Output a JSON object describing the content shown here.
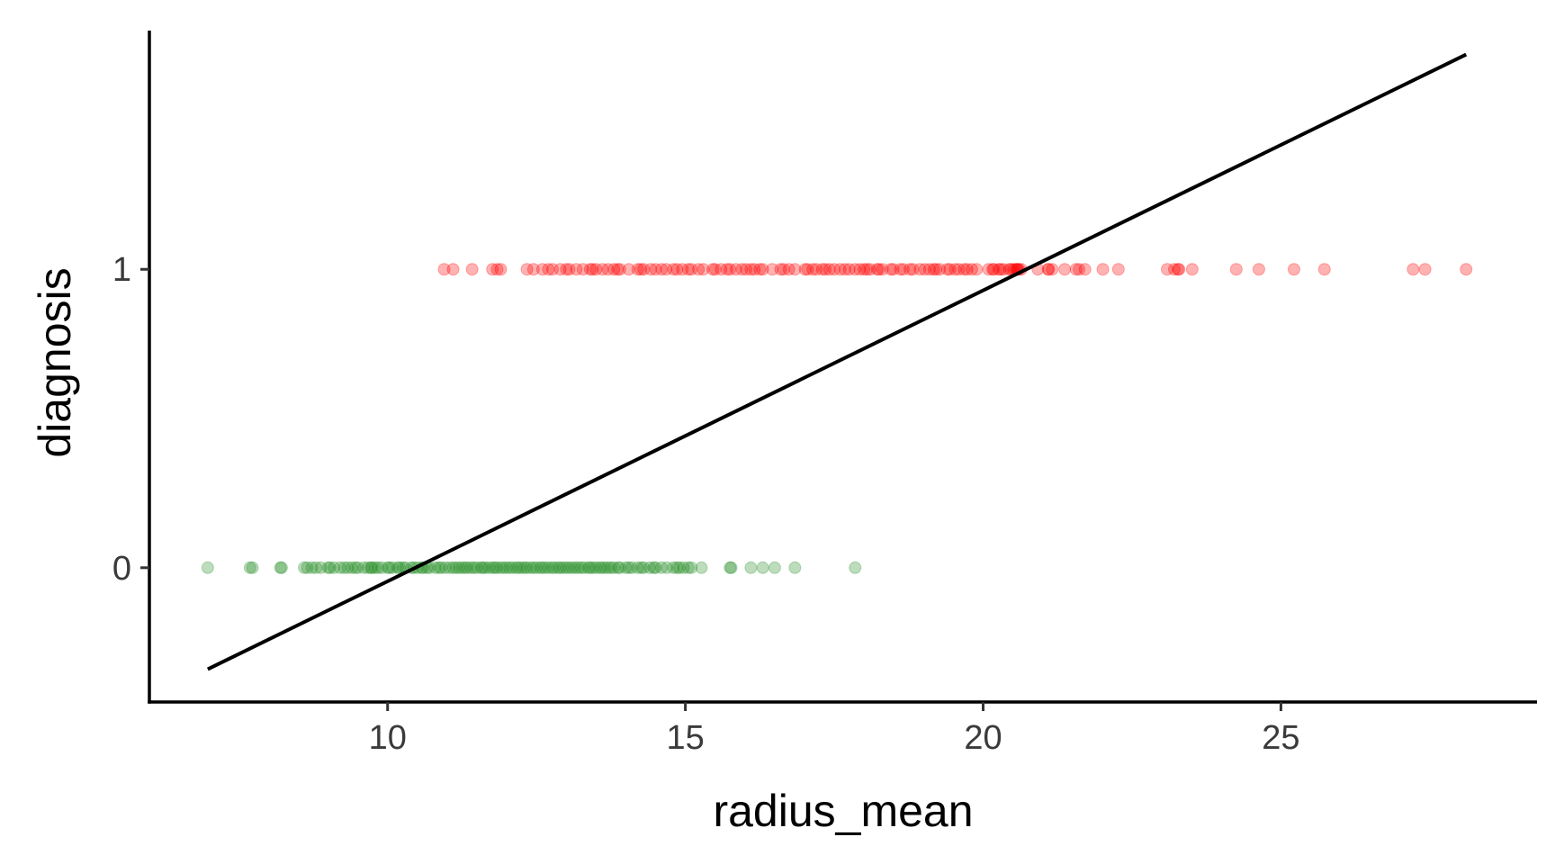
{
  "chart_data": {
    "type": "scatter",
    "title": "",
    "xlabel": "radius_mean",
    "ylabel": "diagnosis",
    "xlim": [
      6.0,
      29.3
    ],
    "ylim": [
      -0.45,
      1.8
    ],
    "x_ticks": [
      10,
      15,
      20,
      25
    ],
    "y_ticks": [
      0,
      1
    ],
    "grid": false,
    "legend": "none",
    "colors": {
      "diagnosis_0": "#228b22",
      "diagnosis_1": "#ff0000",
      "fit_line": "#000000"
    },
    "series": [
      {
        "y": 0,
        "point_alpha": 0.3,
        "x": [
          6.98,
          7.69,
          7.73,
          8.2,
          8.22,
          8.6,
          8.65,
          8.73,
          8.8,
          8.88,
          9.0,
          9.03,
          9.1,
          9.2,
          9.27,
          9.33,
          9.4,
          9.46,
          9.5,
          9.6,
          9.67,
          9.72,
          9.74,
          9.79,
          9.84,
          9.9,
          10.0,
          10.03,
          10.08,
          10.17,
          10.2,
          10.26,
          10.3,
          10.4,
          10.44,
          10.5,
          10.57,
          10.6,
          10.66,
          10.7,
          10.8,
          10.86,
          10.9,
          10.97,
          11.04,
          11.1,
          11.15,
          11.2,
          11.25,
          11.3,
          11.34,
          11.4,
          11.45,
          11.5,
          11.57,
          11.6,
          11.64,
          11.7,
          11.76,
          11.8,
          11.84,
          11.9,
          11.95,
          12.0,
          12.05,
          12.1,
          12.16,
          12.2,
          12.25,
          12.3,
          12.34,
          12.4,
          12.45,
          12.5,
          12.56,
          12.6,
          12.65,
          12.7,
          12.76,
          12.8,
          12.86,
          12.9,
          12.95,
          13.0,
          13.05,
          13.1,
          13.15,
          13.2,
          13.25,
          13.3,
          13.37,
          13.4,
          13.45,
          13.5,
          13.56,
          13.6,
          13.65,
          13.7,
          13.75,
          13.8,
          13.87,
          13.9,
          14.0,
          14.05,
          14.1,
          14.2,
          14.26,
          14.3,
          14.4,
          14.47,
          14.5,
          14.6,
          14.69,
          14.8,
          14.86,
          14.9,
          14.97,
          15.05,
          15.1,
          15.27,
          15.75,
          15.77,
          16.1,
          16.3,
          16.5,
          16.84,
          17.85
        ]
      },
      {
        "y": 1,
        "point_alpha": 0.3,
        "x": [
          10.95,
          11.1,
          11.42,
          11.76,
          11.84,
          11.9,
          12.34,
          12.45,
          12.6,
          12.7,
          12.77,
          12.9,
          13.0,
          13.05,
          13.17,
          13.28,
          13.4,
          13.44,
          13.5,
          13.61,
          13.7,
          13.8,
          13.86,
          13.9,
          14.05,
          14.2,
          14.25,
          14.3,
          14.42,
          14.5,
          14.6,
          14.68,
          14.8,
          14.86,
          14.95,
          15.05,
          15.1,
          15.22,
          15.3,
          15.46,
          15.5,
          15.6,
          15.7,
          15.75,
          15.85,
          15.95,
          16.02,
          16.1,
          16.16,
          16.25,
          16.3,
          16.46,
          16.6,
          16.65,
          16.74,
          16.84,
          17.01,
          17.05,
          17.14,
          17.2,
          17.3,
          17.35,
          17.42,
          17.5,
          17.6,
          17.68,
          17.75,
          17.85,
          17.93,
          18.0,
          18.05,
          18.1,
          18.22,
          18.25,
          18.31,
          18.45,
          18.49,
          18.61,
          18.66,
          18.77,
          18.82,
          18.94,
          19.02,
          19.1,
          19.17,
          19.21,
          19.27,
          19.4,
          19.44,
          19.53,
          19.59,
          19.68,
          19.73,
          19.81,
          19.89,
          20.09,
          20.16,
          20.18,
          20.26,
          20.29,
          20.34,
          20.44,
          20.47,
          20.51,
          20.55,
          20.57,
          20.58,
          20.6,
          20.64,
          20.92,
          21.09,
          21.1,
          21.16,
          21.37,
          21.56,
          21.61,
          21.71,
          22.01,
          22.27,
          23.09,
          23.21,
          23.27,
          23.29,
          23.51,
          24.25,
          24.63,
          25.22,
          25.73,
          27.22,
          27.42,
          28.11
        ]
      }
    ],
    "fit_line": {
      "type": "linear",
      "x": [
        6.98,
        28.11
      ],
      "y": [
        -0.34,
        1.72
      ]
    }
  }
}
